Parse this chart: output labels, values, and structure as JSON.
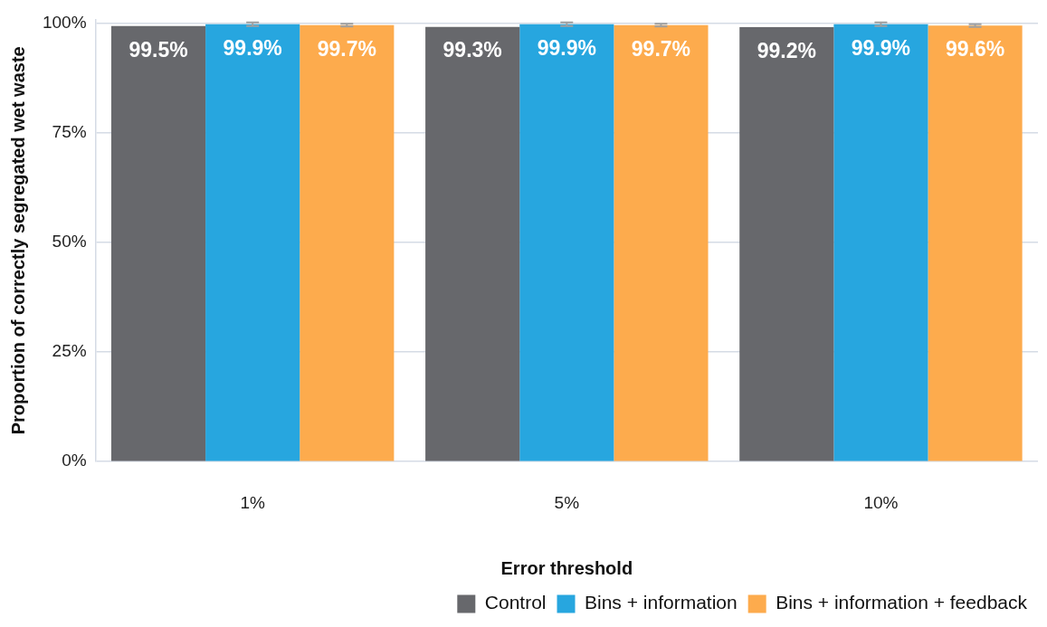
{
  "chart_data": {
    "type": "bar",
    "xlabel": "Error threshold",
    "ylabel": "Proportion of correctly segregated wet waste",
    "categories": [
      "1%",
      "5%",
      "10%"
    ],
    "series": [
      {
        "name": "Control",
        "color": "#67686c",
        "values": [
          99.5,
          99.3,
          99.2
        ],
        "value_labels": [
          "99.5%",
          "99.3%",
          "99.2%"
        ]
      },
      {
        "name": "Bins + information",
        "color": "#27a6df",
        "values": [
          99.9,
          99.9,
          99.9
        ],
        "errors": [
          0.4,
          0.4,
          0.4
        ],
        "value_labels": [
          "99.9%",
          "99.9%",
          "99.9%"
        ]
      },
      {
        "name": "Bins + information + feedback",
        "color": "#fdab4d",
        "values": [
          99.7,
          99.7,
          99.6
        ],
        "errors": [
          0.3,
          0.3,
          0.3
        ],
        "value_labels": [
          "99.7%",
          "99.7%",
          "99.6%"
        ]
      }
    ],
    "ylim": [
      0,
      101
    ],
    "yticks": [
      {
        "value": 0,
        "label": "0%"
      },
      {
        "value": 25,
        "label": "25%"
      },
      {
        "value": 50,
        "label": "50%"
      },
      {
        "value": 75,
        "label": "75%"
      },
      {
        "value": 100,
        "label": "100%"
      }
    ],
    "grid": "y",
    "legend": "bottom"
  }
}
